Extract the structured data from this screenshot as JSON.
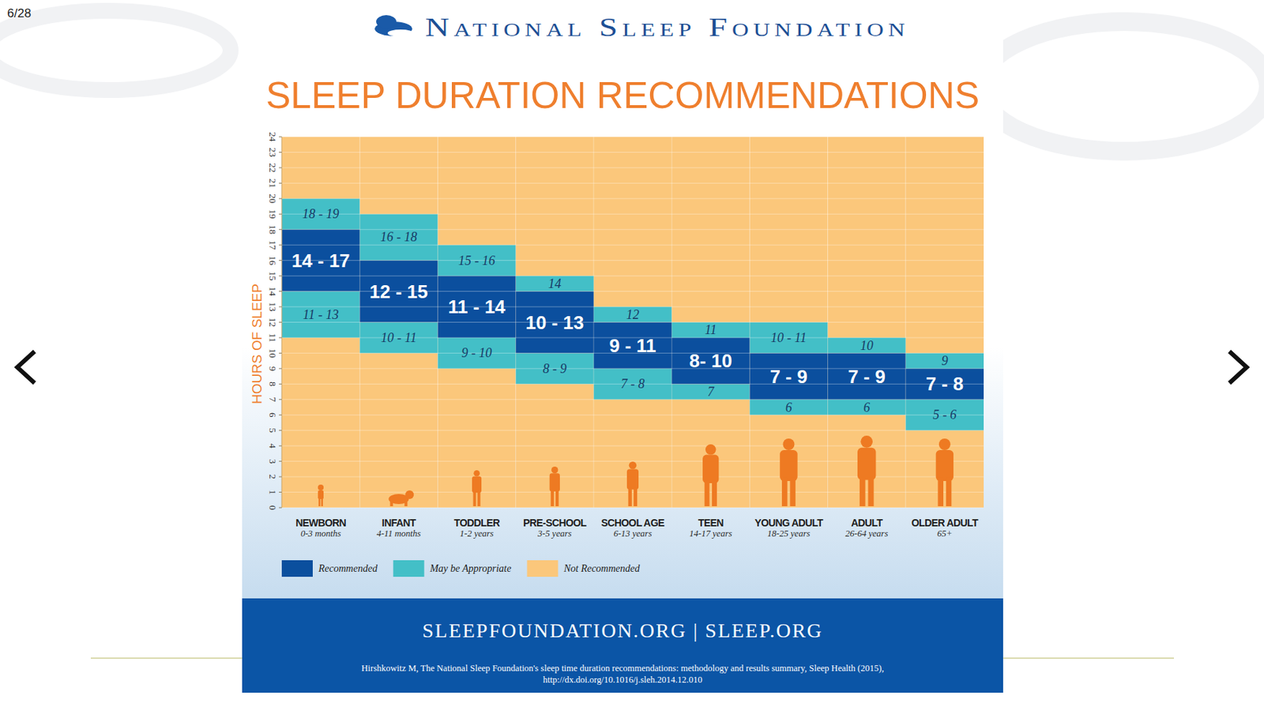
{
  "page_indicator": "6/28",
  "chart_data": {
    "type": "floating_bar",
    "organization": "National Sleep Foundation",
    "title": "SLEEP DURATION RECOMMENDATIONS",
    "y_label": "HOURS OF SLEEP",
    "categories": [
      "NEWBORN",
      "INFANT",
      "TODDLER",
      "PRE-SCHOOL",
      "SCHOOL AGE",
      "TEEN",
      "YOUNG ADULT",
      "ADULT",
      "OLDER ADULT"
    ],
    "category_ages": [
      "0-3 months",
      "4-11 months",
      "1-2 years",
      "3-5 years",
      "6-13 years",
      "14-17 years",
      "18-25 years",
      "26-64 years",
      "65+"
    ],
    "ylim": [
      0,
      24
    ],
    "yticks": [
      0,
      1,
      2,
      3,
      4,
      5,
      6,
      7,
      8,
      9,
      10,
      11,
      12,
      13,
      14,
      15,
      16,
      17,
      18,
      19,
      20,
      21,
      22,
      23,
      24
    ],
    "grid": true,
    "legend": "bottom",
    "data_labels": true,
    "series": [
      {
        "name": "Recommended",
        "color": "#0b4f9e",
        "low": [
          14,
          12,
          11,
          10,
          9,
          8,
          7,
          7,
          7
        ],
        "high": [
          18,
          16,
          15,
          14,
          12,
          11,
          10,
          10,
          9
        ],
        "value_labels": [
          "14 - 17",
          "12 - 15",
          "11 - 14",
          "10 - 13",
          "9 - 11",
          "8- 10",
          "7 - 9",
          "7 - 9",
          "7 - 8"
        ]
      },
      {
        "name": "May be Appropriate",
        "color": "#43bfc7",
        "low": [
          18,
          16,
          15,
          14,
          12,
          11,
          10,
          10,
          9
        ],
        "high": [
          20,
          19,
          17,
          15,
          13,
          12,
          12,
          11,
          10
        ],
        "value_labels": [
          "18 - 19",
          "16 - 18",
          "15 - 16",
          "14",
          "12",
          "11",
          "10 - 11",
          "10",
          "9"
        ]
      },
      {
        "name": "May be Appropriate",
        "color": "#43bfc7",
        "low": [
          11,
          10,
          9,
          8,
          7,
          7,
          6,
          6,
          5
        ],
        "high": [
          14,
          12,
          11,
          10,
          9,
          8,
          7,
          7,
          7
        ],
        "value_labels": [
          "11 - 13",
          "10 - 11",
          "9 - 10",
          "8 - 9",
          "7 - 8",
          "7",
          "6",
          "6",
          "5 - 6"
        ]
      },
      {
        "name": "Not Recommended",
        "color": "#fbc77b",
        "low": [
          0,
          0,
          0,
          0,
          0,
          0,
          0,
          0,
          0
        ],
        "high": [
          24,
          24,
          24,
          24,
          24,
          24,
          24,
          24,
          24
        ]
      }
    ]
  },
  "footer": {
    "links": "SLEEPFOUNDATION.ORG | SLEEP.ORG",
    "citation": [
      "Hirshkowitz M, The National Sleep Foundation's sleep time duration recommendations: methodology and results summary, Sleep Health (2015),",
      "http://dx.doi.org/10.1016/j.sleh.2014.12.010"
    ]
  }
}
